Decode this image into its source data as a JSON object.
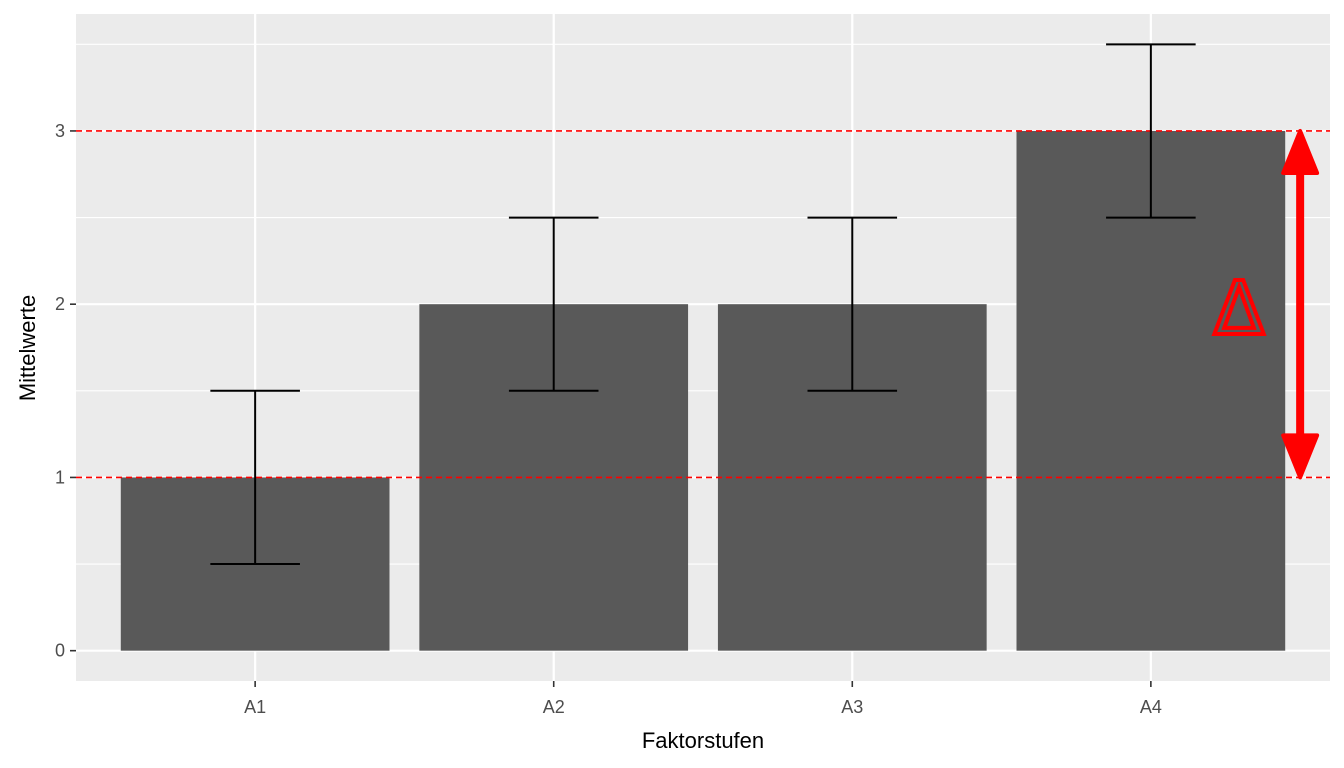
{
  "chart_data": {
    "type": "bar",
    "categories": [
      "A1",
      "A2",
      "A3",
      "A4"
    ],
    "values": [
      1,
      2,
      2,
      3
    ],
    "error_bars": [
      {
        "lower": 0.5,
        "upper": 1.5
      },
      {
        "lower": 1.5,
        "upper": 2.5
      },
      {
        "lower": 1.5,
        "upper": 2.5
      },
      {
        "lower": 2.5,
        "upper": 3.5
      }
    ],
    "xlabel": "Faktorstufen",
    "ylabel": "Mittelwerte",
    "ylim": [
      -0.175,
      3.675
    ],
    "yticks": [
      0,
      1,
      2,
      3
    ],
    "reference_lines": [
      1,
      3
    ],
    "annotation": {
      "text": "Δ",
      "from": 1,
      "to": 3
    },
    "grid": true,
    "colors": {
      "bar": "#595959",
      "panel": "#ebebeb",
      "grid": "#ffffff",
      "error_bar": "#000000",
      "reference_line": "#ff0000",
      "arrow": "#ff0000"
    }
  }
}
